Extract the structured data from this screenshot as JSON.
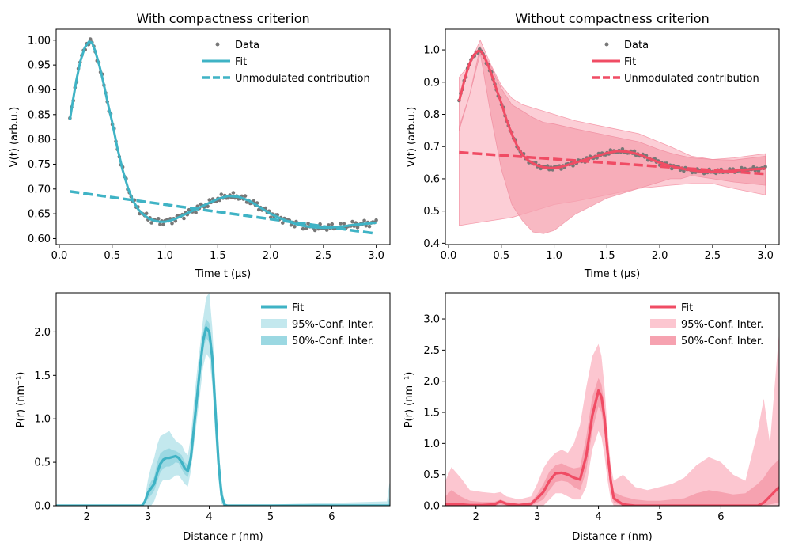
{
  "colors": {
    "teal": "#3fb3c5",
    "teal_light": "#c3e8ee",
    "teal_mid": "#9bd8e2",
    "red": "#f04c64",
    "red_light": "#fcc6d0",
    "red_mid": "#f6a2b0",
    "data_gray": "#777777"
  },
  "chart_data": [
    {
      "id": "top-left",
      "type": "line",
      "title": "With compactness criterion",
      "xlabel": "Time t (µs)",
      "ylabel": "V(t) (arb.u.)",
      "xlim": [
        -0.03,
        3.13
      ],
      "ylim": [
        0.588,
        1.022
      ],
      "xticks": [
        "0.0",
        "0.5",
        "1.0",
        "1.5",
        "2.0",
        "2.5",
        "3.0"
      ],
      "yticks": [
        "0.60",
        "0.65",
        "0.70",
        "0.75",
        "0.80",
        "0.85",
        "0.90",
        "0.95",
        "1.00"
      ],
      "legend": {
        "position": "top-right",
        "entries": [
          "Data",
          "Fit",
          "Unmodulated contribution"
        ]
      },
      "series": {
        "fit_x": [
          0.1,
          0.13,
          0.16,
          0.2,
          0.24,
          0.28,
          0.31,
          0.34,
          0.38,
          0.42,
          0.46,
          0.5,
          0.55,
          0.6,
          0.65,
          0.7,
          0.75,
          0.8,
          0.85,
          0.9,
          0.95,
          1.0,
          1.05,
          1.1,
          1.15,
          1.2,
          1.3,
          1.4,
          1.5,
          1.6,
          1.7,
          1.8,
          1.9,
          2.0,
          2.1,
          2.2,
          2.3,
          2.4,
          2.5,
          2.6,
          2.7,
          2.8,
          2.9,
          3.0
        ],
        "fit_y": [
          0.84,
          0.88,
          0.918,
          0.958,
          0.985,
          0.997,
          0.995,
          0.978,
          0.948,
          0.912,
          0.872,
          0.835,
          0.782,
          0.738,
          0.702,
          0.675,
          0.658,
          0.648,
          0.64,
          0.636,
          0.634,
          0.634,
          0.636,
          0.64,
          0.645,
          0.65,
          0.66,
          0.67,
          0.68,
          0.686,
          0.684,
          0.676,
          0.663,
          0.65,
          0.64,
          0.632,
          0.626,
          0.623,
          0.622,
          0.623,
          0.625,
          0.628,
          0.63,
          0.632
        ],
        "unmod_x": [
          0.1,
          3.0
        ],
        "unmod_y": [
          0.695,
          0.61
        ]
      }
    },
    {
      "id": "top-right",
      "type": "line",
      "title": "Without compactness criterion",
      "xlabel": "Time t (µs)",
      "ylabel": "V(t) (arb.u.)",
      "xlim": [
        -0.03,
        3.13
      ],
      "ylim": [
        0.396,
        1.064
      ],
      "xticks": [
        "0.0",
        "0.5",
        "1.0",
        "1.5",
        "2.0",
        "2.5",
        "3.0"
      ],
      "yticks": [
        "0.4",
        "0.5",
        "0.6",
        "0.7",
        "0.8",
        "0.9",
        "1.0"
      ],
      "legend": {
        "position": "top-right",
        "entries": [
          "Data",
          "Fit",
          "Unmodulated contribution"
        ]
      },
      "series": {
        "fit_x": [
          0.1,
          0.13,
          0.16,
          0.2,
          0.24,
          0.28,
          0.31,
          0.34,
          0.38,
          0.42,
          0.46,
          0.5,
          0.55,
          0.6,
          0.65,
          0.7,
          0.75,
          0.8,
          0.85,
          0.9,
          0.95,
          1.0,
          1.05,
          1.1,
          1.15,
          1.2,
          1.3,
          1.4,
          1.5,
          1.6,
          1.7,
          1.8,
          1.9,
          2.0,
          2.1,
          2.2,
          2.3,
          2.4,
          2.5,
          2.6,
          2.7,
          2.8,
          2.9,
          3.0
        ],
        "fit_y": [
          0.84,
          0.88,
          0.918,
          0.958,
          0.985,
          0.997,
          0.995,
          0.978,
          0.948,
          0.912,
          0.872,
          0.835,
          0.782,
          0.738,
          0.702,
          0.675,
          0.658,
          0.648,
          0.64,
          0.636,
          0.634,
          0.634,
          0.636,
          0.64,
          0.645,
          0.65,
          0.66,
          0.67,
          0.68,
          0.686,
          0.684,
          0.676,
          0.663,
          0.65,
          0.64,
          0.632,
          0.626,
          0.623,
          0.622,
          0.623,
          0.625,
          0.628,
          0.63,
          0.632
        ],
        "unmod_x": [
          0.1,
          3.0
        ],
        "unmod_y": [
          0.682,
          0.615
        ],
        "band95_x": [
          0.1,
          0.2,
          0.3,
          0.4,
          0.5,
          0.6,
          0.7,
          0.8,
          0.9,
          1.0,
          1.2,
          1.5,
          1.8,
          2.1,
          2.3,
          2.5,
          2.7,
          3.0
        ],
        "band95_upper": [
          0.915,
          0.955,
          1.03,
          0.955,
          0.89,
          0.85,
          0.83,
          0.82,
          0.81,
          0.8,
          0.78,
          0.76,
          0.74,
          0.7,
          0.67,
          0.66,
          0.665,
          0.678
        ],
        "band95_lower": [
          0.455,
          0.46,
          0.465,
          0.47,
          0.475,
          0.48,
          0.49,
          0.5,
          0.51,
          0.52,
          0.53,
          0.55,
          0.57,
          0.58,
          0.585,
          0.585,
          0.57,
          0.55
        ],
        "band50_x": [
          0.1,
          0.2,
          0.3,
          0.4,
          0.5,
          0.6,
          0.7,
          0.8,
          0.9,
          1.0,
          1.2,
          1.5,
          1.8,
          2.0,
          2.1,
          2.2,
          2.3,
          2.5,
          2.7,
          3.0
        ],
        "band50_upper": [
          0.76,
          0.86,
          1.01,
          0.95,
          0.88,
          0.83,
          0.81,
          0.79,
          0.775,
          0.77,
          0.755,
          0.735,
          0.715,
          0.69,
          0.68,
          0.672,
          0.665,
          0.66,
          0.658,
          0.67
        ],
        "band50_lower": [
          0.75,
          0.86,
          0.99,
          0.8,
          0.63,
          0.52,
          0.47,
          0.435,
          0.43,
          0.44,
          0.49,
          0.54,
          0.57,
          0.59,
          0.6,
          0.6,
          0.61,
          0.6,
          0.59,
          0.58
        ]
      }
    },
    {
      "id": "bottom-left",
      "type": "area",
      "xlabel": "Distance r (nm)",
      "ylabel": "P(r) (nm⁻¹)",
      "xlim": [
        1.5,
        6.95
      ],
      "ylim": [
        0,
        2.45
      ],
      "xticks": [
        "2",
        "3",
        "4",
        "5",
        "6"
      ],
      "yticks": [
        "0.0",
        "0.5",
        "1.0",
        "1.5",
        "2.0"
      ],
      "legend": {
        "position": "top-right",
        "entries": [
          "Fit",
          "95%-Conf. Inter.",
          "50%-Conf. Inter."
        ]
      },
      "series": {
        "x": [
          1.5,
          2.9,
          2.95,
          3.0,
          3.05,
          3.1,
          3.15,
          3.2,
          3.25,
          3.3,
          3.35,
          3.4,
          3.45,
          3.5,
          3.55,
          3.6,
          3.65,
          3.7,
          3.75,
          3.8,
          3.85,
          3.9,
          3.95,
          4.0,
          4.05,
          4.1,
          4.15,
          4.2,
          4.25,
          4.3,
          6.9,
          6.95
        ],
        "fit": [
          0.0,
          0.0,
          0.05,
          0.15,
          0.2,
          0.25,
          0.38,
          0.48,
          0.53,
          0.55,
          0.55,
          0.56,
          0.57,
          0.55,
          0.5,
          0.43,
          0.4,
          0.55,
          0.9,
          1.25,
          1.6,
          1.9,
          2.05,
          2.0,
          1.7,
          1.1,
          0.5,
          0.12,
          0.01,
          0.0,
          0.0,
          0.0
        ],
        "u95": [
          0.0,
          0.0,
          0.1,
          0.3,
          0.45,
          0.55,
          0.7,
          0.8,
          0.82,
          0.84,
          0.86,
          0.8,
          0.75,
          0.72,
          0.7,
          0.62,
          0.58,
          0.8,
          1.2,
          1.55,
          1.85,
          2.15,
          2.4,
          2.45,
          2.05,
          1.4,
          0.7,
          0.25,
          0.05,
          0.0,
          0.05,
          0.3
        ],
        "l95": [
          0.0,
          0.0,
          0.0,
          0.0,
          0.0,
          0.05,
          0.15,
          0.25,
          0.3,
          0.3,
          0.3,
          0.32,
          0.35,
          0.35,
          0.3,
          0.25,
          0.22,
          0.4,
          0.7,
          1.0,
          1.3,
          1.6,
          1.75,
          1.7,
          1.4,
          0.8,
          0.3,
          0.02,
          0.0,
          0.0,
          0.0,
          0.0
        ],
        "u50": [
          0.0,
          0.0,
          0.07,
          0.2,
          0.28,
          0.33,
          0.5,
          0.6,
          0.63,
          0.65,
          0.66,
          0.64,
          0.63,
          0.61,
          0.58,
          0.5,
          0.47,
          0.65,
          1.0,
          1.35,
          1.7,
          2.0,
          2.15,
          2.1,
          1.8,
          1.2,
          0.56,
          0.15,
          0.02,
          0.0,
          0.0,
          0.1
        ],
        "l50": [
          0.0,
          0.0,
          0.03,
          0.08,
          0.12,
          0.17,
          0.28,
          0.38,
          0.43,
          0.45,
          0.45,
          0.47,
          0.5,
          0.49,
          0.42,
          0.36,
          0.33,
          0.47,
          0.8,
          1.15,
          1.5,
          1.8,
          1.93,
          1.88,
          1.58,
          0.98,
          0.42,
          0.08,
          0.0,
          0.0,
          0.0,
          0.0
        ]
      }
    },
    {
      "id": "bottom-right",
      "type": "area",
      "xlabel": "Distance r (nm)",
      "ylabel": "P(r) (nm⁻¹)",
      "xlim": [
        1.5,
        6.95
      ],
      "ylim": [
        0,
        3.42
      ],
      "xticks": [
        "2",
        "3",
        "4",
        "5",
        "6"
      ],
      "yticks": [
        "0.0",
        "0.5",
        "1.0",
        "1.5",
        "2.0",
        "2.5",
        "3.0"
      ],
      "legend": {
        "position": "top-right",
        "entries": [
          "Fit",
          "95%-Conf. Inter.",
          "50%-Conf. Inter."
        ]
      },
      "series": {
        "x": [
          1.5,
          1.6,
          1.75,
          1.9,
          2.1,
          2.3,
          2.4,
          2.5,
          2.7,
          2.9,
          3.0,
          3.1,
          3.2,
          3.3,
          3.4,
          3.5,
          3.6,
          3.7,
          3.8,
          3.9,
          4.0,
          4.05,
          4.1,
          4.15,
          4.2,
          4.25,
          4.4,
          4.6,
          4.8,
          5.0,
          5.2,
          5.4,
          5.6,
          5.8,
          6.0,
          6.2,
          6.4,
          6.6,
          6.7,
          6.8,
          6.95
        ],
        "fit": [
          0.02,
          0.02,
          0.02,
          0.01,
          0.01,
          0.02,
          0.07,
          0.03,
          0.01,
          0.03,
          0.12,
          0.22,
          0.4,
          0.52,
          0.53,
          0.5,
          0.45,
          0.42,
          0.8,
          1.45,
          1.85,
          1.75,
          1.4,
          0.85,
          0.4,
          0.12,
          0.02,
          0.0,
          0.0,
          0.0,
          0.0,
          0.0,
          0.0,
          0.0,
          0.0,
          0.0,
          0.0,
          0.0,
          0.05,
          0.15,
          0.3
        ],
        "u95": [
          0.4,
          0.62,
          0.45,
          0.25,
          0.22,
          0.2,
          0.22,
          0.15,
          0.1,
          0.15,
          0.35,
          0.6,
          0.75,
          0.85,
          0.9,
          0.85,
          1.0,
          1.3,
          1.9,
          2.4,
          2.6,
          2.4,
          1.9,
          1.2,
          0.65,
          0.4,
          0.5,
          0.3,
          0.25,
          0.3,
          0.35,
          0.45,
          0.65,
          0.78,
          0.7,
          0.5,
          0.4,
          1.2,
          1.72,
          1.0,
          2.8
        ],
        "l95": [
          0.0,
          0.0,
          0.0,
          0.0,
          0.0,
          0.0,
          0.0,
          0.0,
          0.0,
          0.0,
          0.0,
          0.0,
          0.1,
          0.2,
          0.2,
          0.15,
          0.1,
          0.1,
          0.3,
          0.9,
          1.2,
          1.1,
          0.8,
          0.4,
          0.1,
          0.0,
          0.0,
          0.0,
          0.0,
          0.0,
          0.0,
          0.0,
          0.0,
          0.0,
          0.0,
          0.0,
          0.0,
          0.0,
          0.0,
          0.0,
          0.0
        ],
        "u50": [
          0.15,
          0.25,
          0.15,
          0.08,
          0.06,
          0.06,
          0.1,
          0.06,
          0.03,
          0.06,
          0.18,
          0.35,
          0.55,
          0.65,
          0.68,
          0.63,
          0.6,
          0.62,
          1.1,
          1.75,
          2.05,
          1.95,
          1.6,
          1.0,
          0.5,
          0.22,
          0.15,
          0.1,
          0.08,
          0.08,
          0.1,
          0.12,
          0.2,
          0.25,
          0.22,
          0.18,
          0.2,
          0.35,
          0.45,
          0.6,
          0.75
        ],
        "l50": [
          0.0,
          0.0,
          0.0,
          0.0,
          0.0,
          0.0,
          0.02,
          0.0,
          0.0,
          0.0,
          0.05,
          0.1,
          0.25,
          0.38,
          0.4,
          0.38,
          0.3,
          0.25,
          0.55,
          1.2,
          1.6,
          1.5,
          1.15,
          0.65,
          0.25,
          0.05,
          0.0,
          0.0,
          0.0,
          0.0,
          0.0,
          0.0,
          0.0,
          0.0,
          0.0,
          0.0,
          0.0,
          0.0,
          0.0,
          0.02,
          0.05
        ]
      }
    }
  ]
}
